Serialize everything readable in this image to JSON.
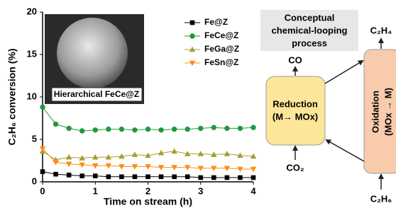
{
  "chart_data": {
    "type": "line",
    "y_label": "C₂H₆ conversion (%)",
    "x_label": "Time on stream (h)",
    "annotation": "Hierarchical FeCe@Z",
    "x": [
      0,
      0.25,
      0.5,
      0.75,
      1,
      1.25,
      1.5,
      1.75,
      2,
      2.25,
      2.5,
      2.75,
      3,
      3.25,
      3.5,
      3.75,
      4
    ],
    "series": [
      {
        "name": "Fe@Z",
        "color": "#000000",
        "marker": "square",
        "values": [
          1.2,
          0.9,
          0.8,
          0.7,
          0.7,
          0.6,
          0.6,
          0.6,
          0.6,
          0.6,
          0.6,
          0.6,
          0.5,
          0.5,
          0.5,
          0.5,
          0.5
        ]
      },
      {
        "name": "FeCe@Z",
        "color": "#1f9a3a",
        "marker": "circle",
        "values": [
          8.8,
          6.8,
          6.3,
          6.0,
          6.1,
          6.2,
          6.2,
          6.1,
          6.2,
          6.1,
          6.2,
          6.2,
          6.3,
          6.4,
          6.3,
          6.3,
          6.4
        ]
      },
      {
        "name": "FeGa@Z",
        "color": "#a3a032",
        "marker": "triangle-up",
        "values": [
          3.6,
          2.6,
          2.9,
          2.8,
          2.9,
          2.9,
          3.0,
          3.2,
          3.1,
          3.4,
          3.6,
          3.3,
          3.3,
          3.2,
          3.3,
          3.1,
          3.0
        ]
      },
      {
        "name": "FeSn@Z",
        "color": "#ff8c1a",
        "marker": "triangle-down",
        "values": [
          3.9,
          2.3,
          2.1,
          2.0,
          1.9,
          1.9,
          1.8,
          1.8,
          1.8,
          1.7,
          1.7,
          1.7,
          1.6,
          1.6,
          1.6,
          1.5,
          1.5
        ]
      }
    ],
    "xlim": [
      0,
      4
    ],
    "xticks": [
      0,
      1,
      2,
      3,
      4
    ],
    "ylim": [
      0,
      20
    ],
    "yticks": [
      0,
      5,
      10,
      15,
      20
    ],
    "legend": "upper right"
  },
  "diagram": {
    "title_lines": [
      "Conceptual",
      "chemical-looping",
      "process"
    ],
    "reduction": [
      "Reduction",
      "(M→ MOx)"
    ],
    "oxidation": [
      "Oxidation",
      "(MOx → M)"
    ],
    "reduction_out": "CO",
    "reduction_in": "CO₂",
    "oxidation_out": "C₂H₄",
    "oxidation_in": "C₂H₆"
  }
}
